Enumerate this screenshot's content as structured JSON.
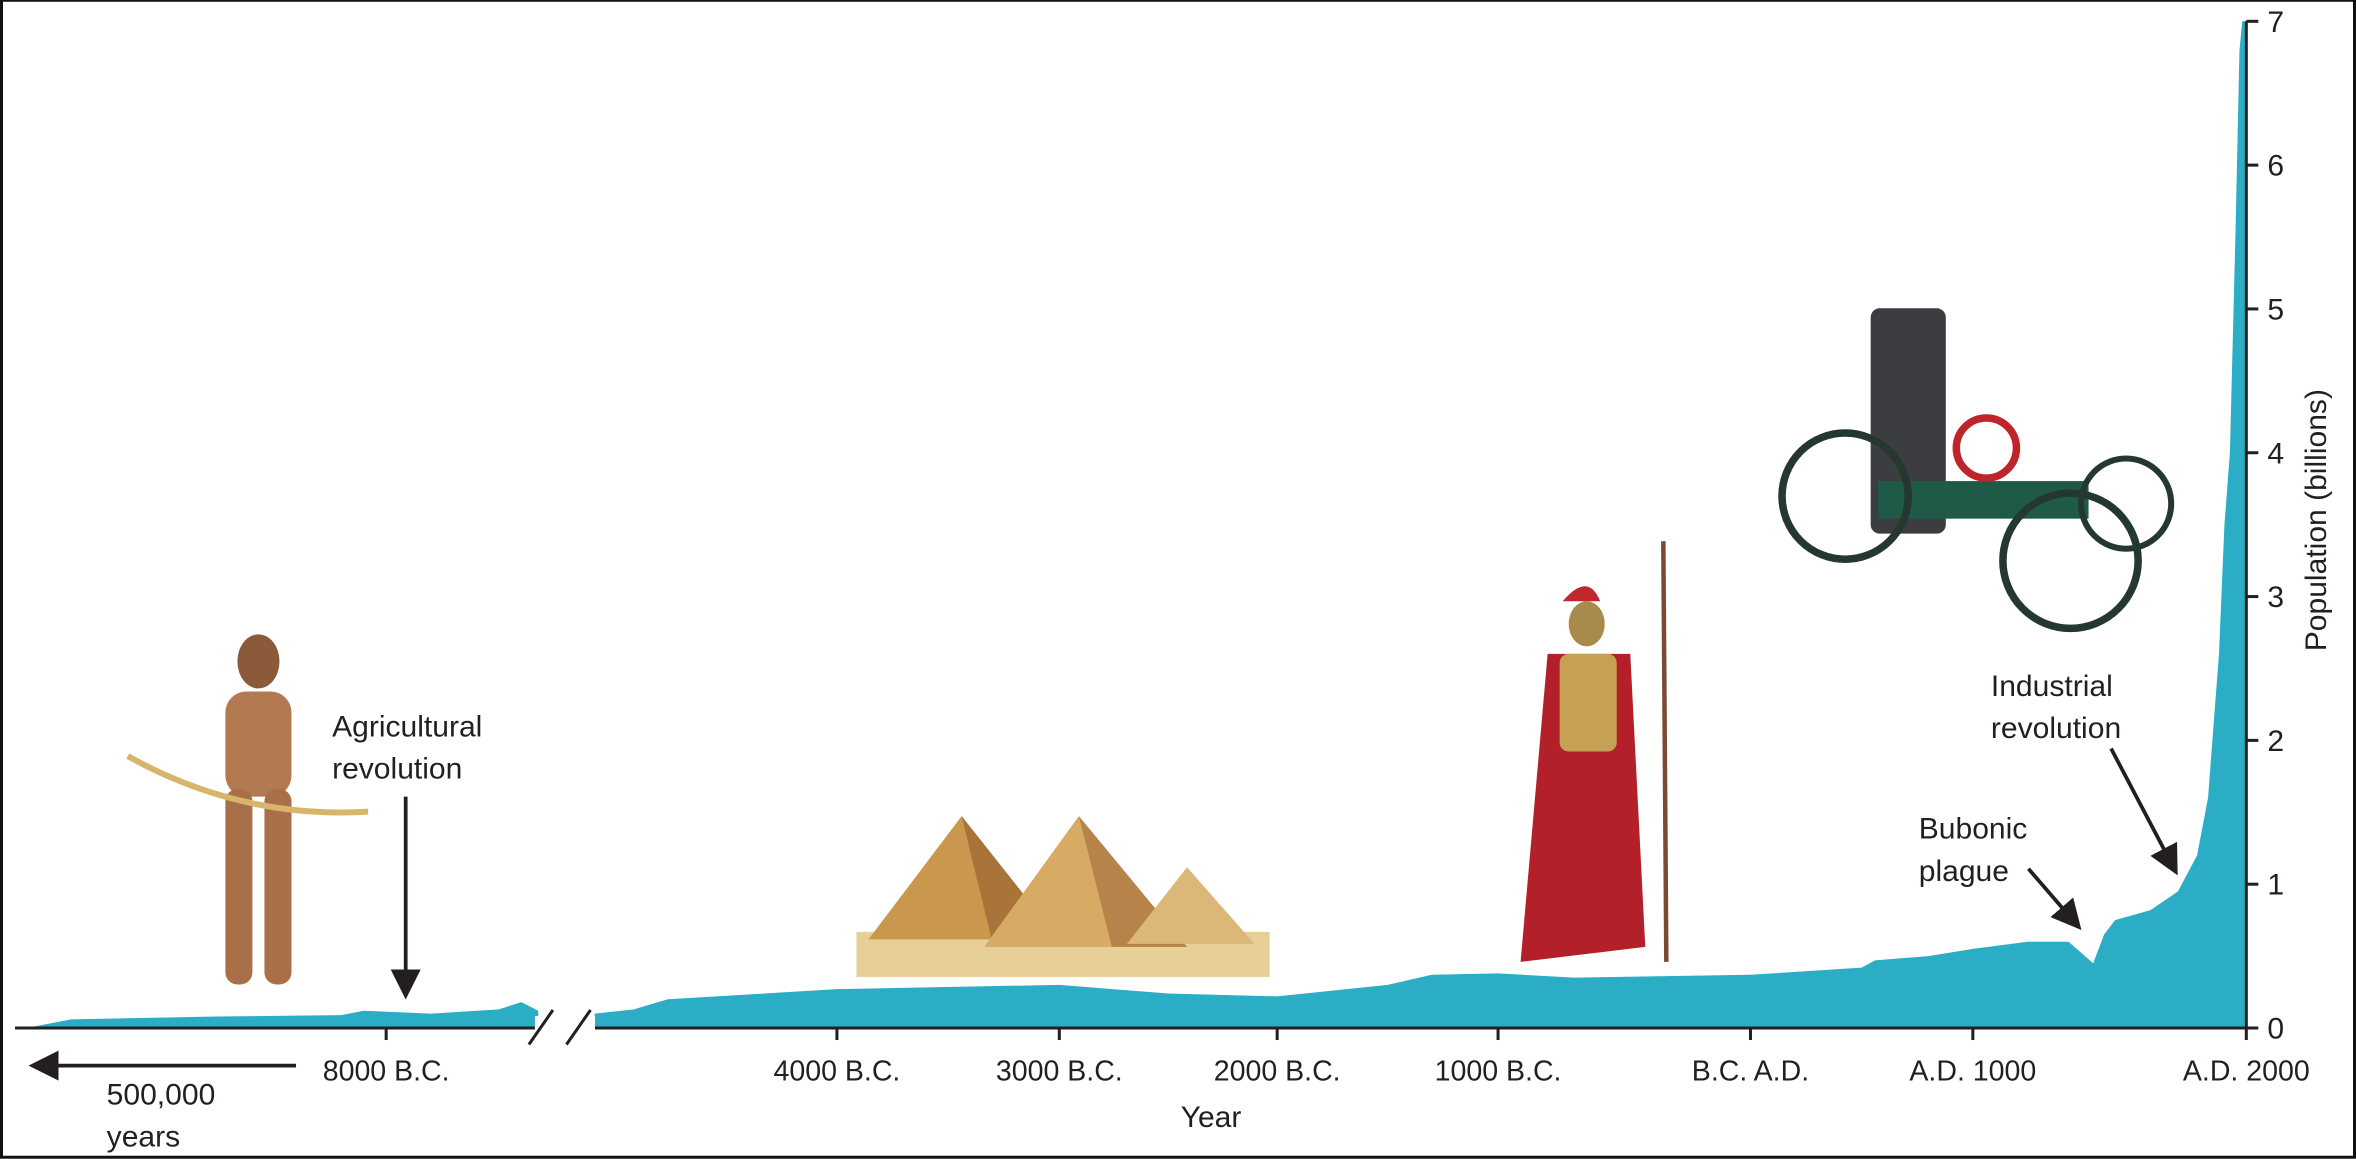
{
  "chart_data": {
    "type": "area",
    "xlabel": "Year",
    "ylabel": "Population (billions)",
    "xlim": [
      -11300,
      2000
    ],
    "ylim": [
      0,
      7
    ],
    "yticks": [
      0,
      1,
      2,
      3,
      4,
      5,
      6,
      7
    ],
    "xticks": [
      {
        "value": -8000,
        "label": "8000 B.C."
      },
      {
        "value": -4000,
        "label": "4000 B.C."
      },
      {
        "value": -3000,
        "label": "3000 B.C."
      },
      {
        "value": -2000,
        "label": "2000 B.C."
      },
      {
        "value": -1000,
        "label": "1000 B.C."
      },
      {
        "value": 0,
        "label": "B.C. A.D."
      },
      {
        "value": 1000,
        "label": "A.D. 1000"
      },
      {
        "value": 2000,
        "label": "A.D. 2000"
      }
    ],
    "x": [
      -11200,
      -10800,
      -9500,
      -8400,
      -8200,
      -7600,
      -7000,
      -6800,
      -6650,
      -6400,
      -6150,
      -5800,
      -5500,
      -4000,
      -3000,
      -2500,
      -2000,
      -1500,
      -1300,
      -1000,
      -700,
      0,
      500,
      560,
      800,
      1000,
      1200,
      1350,
      1440,
      1480,
      1520,
      1650,
      1750,
      1820,
      1860,
      1880,
      1900,
      1920,
      1940,
      1960,
      1975,
      1985,
      2000
    ],
    "series": [
      {
        "color": "#2badc6",
        "values": [
          0,
          0.06,
          0.08,
          0.09,
          0.12,
          0.1,
          0.13,
          0.18,
          0.12,
          null,
          0.1,
          0.13,
          0.2,
          0.27,
          0.3,
          0.24,
          0.22,
          0.3,
          0.37,
          0.38,
          0.35,
          0.37,
          0.42,
          0.47,
          0.5,
          0.55,
          0.6,
          0.6,
          0.45,
          0.65,
          0.75,
          0.82,
          0.95,
          1.2,
          1.6,
          2.1,
          2.6,
          3.5,
          4.0,
          5.5,
          6.8,
          7,
          7
        ]
      }
    ],
    "annotations": [
      {
        "text": "Agricultural revolution"
      },
      {
        "text": "Bubonic plague"
      },
      {
        "text": "Industrial revolution"
      },
      {
        "text": "500,000 years"
      }
    ]
  }
}
